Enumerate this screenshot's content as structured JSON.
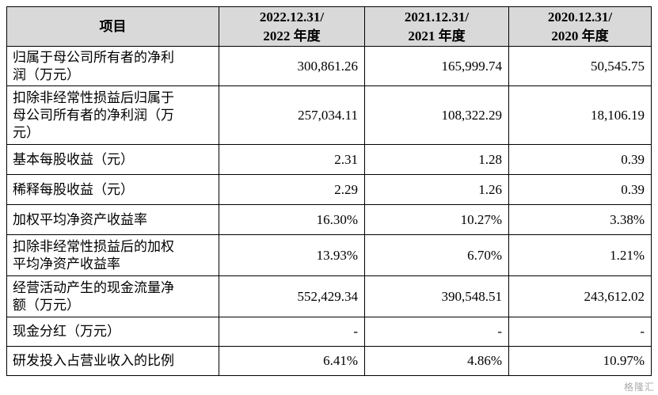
{
  "header": {
    "col0": "项目",
    "col1_line1": "2022.12.31/",
    "col1_line2": "2022 年度",
    "col2_line1": "2021.12.31/",
    "col2_line2": "2021 年度",
    "col3_line1": "2020.12.31/",
    "col3_line2": "2020 年度"
  },
  "rows": [
    {
      "label_lines": [
        "归属于母公司所有者的净利",
        "润（万元）"
      ],
      "v2022": "300,861.26",
      "v2021": "165,999.74",
      "v2020": "50,545.75"
    },
    {
      "label_lines": [
        "扣除非经常性损益后归属于",
        "母公司所有者的净利润（万",
        "元）"
      ],
      "v2022": "257,034.11",
      "v2021": "108,322.29",
      "v2020": "18,106.19"
    },
    {
      "label_lines": [
        "基本每股收益（元）"
      ],
      "v2022": "2.31",
      "v2021": "1.28",
      "v2020": "0.39"
    },
    {
      "label_lines": [
        "稀释每股收益（元）"
      ],
      "v2022": "2.29",
      "v2021": "1.26",
      "v2020": "0.39"
    },
    {
      "label_lines": [
        "加权平均净资产收益率"
      ],
      "v2022": "16.30%",
      "v2021": "10.27%",
      "v2020": "3.38%"
    },
    {
      "label_lines": [
        "扣除非经常性损益后的加权",
        "平均净资产收益率"
      ],
      "v2022": "13.93%",
      "v2021": "6.70%",
      "v2020": "1.21%"
    },
    {
      "label_lines": [
        "经营活动产生的现金流量净",
        "额（万元）"
      ],
      "v2022": "552,429.34",
      "v2021": "390,548.51",
      "v2020": "243,612.02"
    },
    {
      "label_lines": [
        "现金分红（万元）"
      ],
      "v2022": "-",
      "v2021": "-",
      "v2020": "-"
    },
    {
      "label_lines": [
        "研发投入占营业收入的比例"
      ],
      "v2022": "6.41%",
      "v2021": "4.86%",
      "v2020": "10.97%"
    }
  ],
  "watermark": "格隆汇"
}
